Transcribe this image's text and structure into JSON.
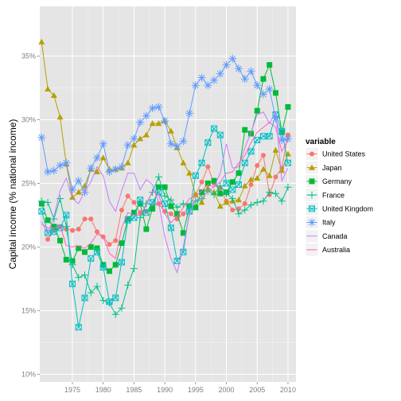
{
  "chart_data": {
    "type": "line",
    "ylabel": "Capital income (% national income)",
    "xlabel": "",
    "xlim": [
      1969.7,
      2011.3
    ],
    "ylim": [
      9.4,
      38.9
    ],
    "x_ticks": [
      1975,
      1980,
      1985,
      1990,
      1995,
      2000,
      2005,
      2010
    ],
    "x_tick_labels": [
      "1975",
      "1980",
      "1985",
      "1990",
      "1995",
      "2000",
      "2005",
      "2010"
    ],
    "y_ticks": [
      10,
      15,
      20,
      25,
      30,
      35
    ],
    "y_tick_labels": [
      "10%",
      "15%",
      "20%",
      "25%",
      "30%",
      "35%"
    ],
    "grid": true,
    "legend": {
      "title": "variable",
      "position": "right"
    },
    "series": [
      {
        "name": "United States",
        "color": "#F8766D",
        "marker": "circle",
        "x": [
          1971,
          1972,
          1973,
          1974,
          1975,
          1976,
          1977,
          1978,
          1979,
          1980,
          1981,
          1982,
          1983,
          1984,
          1985,
          1986,
          1987,
          1988,
          1989,
          1990,
          1991,
          1992,
          1993,
          1994,
          1995,
          1996,
          1997,
          1998,
          1999,
          2000,
          2001,
          2002,
          2003,
          2004,
          2005,
          2006,
          2007,
          2008,
          2009,
          2010
        ],
        "y": [
          20.6,
          21.3,
          21.6,
          21.4,
          21.3,
          21.4,
          22.2,
          22.2,
          21.2,
          20.8,
          20.2,
          20.5,
          22.9,
          24.0,
          23.5,
          22.7,
          22.8,
          23.2,
          23.4,
          22.8,
          22.6,
          22.2,
          22.6,
          23.2,
          24.1,
          25.1,
          26.3,
          25.0,
          24.6,
          23.6,
          22.9,
          23.0,
          23.4,
          24.9,
          26.4,
          27.2,
          24.1,
          25.5,
          26.2,
          28.8
        ]
      },
      {
        "name": "Japan",
        "color": "#B79F00",
        "marker": "triangle",
        "x": [
          1970,
          1971,
          1972,
          1973,
          1974,
          1975,
          1976,
          1977,
          1978,
          1979,
          1980,
          1981,
          1982,
          1983,
          1984,
          1985,
          1986,
          1987,
          1988,
          1989,
          1990,
          1991,
          1992,
          1993,
          1994,
          1995,
          1996,
          1997,
          1998,
          1999,
          2000,
          2001,
          2002,
          2003,
          2004,
          2005,
          2006,
          2007,
          2008,
          2009,
          2010
        ],
        "y": [
          36.1,
          32.4,
          31.9,
          30.2,
          26.5,
          23.9,
          24.3,
          24.8,
          26.1,
          25.9,
          27.0,
          26.1,
          26.1,
          26.2,
          26.6,
          28.0,
          28.5,
          28.8,
          29.7,
          29.7,
          29.9,
          29.1,
          27.8,
          26.6,
          25.8,
          24.1,
          23.5,
          24.6,
          24.3,
          23.2,
          23.5,
          23.6,
          23.7,
          24.8,
          25.3,
          25.4,
          26.1,
          25.6,
          27.6,
          26.0,
          27.3
        ]
      },
      {
        "name": "Germany",
        "color": "#00BA38",
        "marker": "square",
        "x": [
          1970,
          1971,
          1972,
          1973,
          1974,
          1975,
          1976,
          1977,
          1978,
          1979,
          1980,
          1981,
          1982,
          1983,
          1984,
          1985,
          1986,
          1987,
          1988,
          1989,
          1990,
          1991,
          1992,
          1993,
          1994,
          1995,
          1996,
          1997,
          1998,
          1999,
          2000,
          2001,
          2002,
          2003,
          2004,
          2005,
          2006,
          2007,
          2008,
          2009,
          2010
        ],
        "y": [
          23.4,
          22.1,
          21.6,
          20.5,
          19.0,
          18.9,
          19.9,
          19.6,
          20.0,
          19.9,
          18.6,
          18.1,
          18.6,
          20.3,
          22.2,
          22.7,
          23.4,
          21.4,
          23.0,
          24.7,
          24.7,
          23.2,
          22.6,
          21.1,
          23.2,
          23.1,
          24.3,
          25.0,
          25.2,
          24.2,
          24.3,
          25.1,
          25.8,
          29.2,
          28.9,
          30.7,
          33.2,
          34.3,
          32.1,
          29.0,
          31.0
        ]
      },
      {
        "name": "France",
        "color": "#00C08B",
        "marker": "plus",
        "x": [
          1970,
          1971,
          1972,
          1973,
          1974,
          1975,
          1976,
          1977,
          1978,
          1979,
          1980,
          1981,
          1982,
          1983,
          1984,
          1985,
          1986,
          1987,
          1988,
          1989,
          1990,
          1991,
          1992,
          1993,
          1994,
          1995,
          1996,
          1997,
          1998,
          1999,
          2000,
          2001,
          2002,
          2003,
          2004,
          2005,
          2006,
          2007,
          2008,
          2009,
          2010
        ],
        "y": [
          23.6,
          23.5,
          22.2,
          23.8,
          21.6,
          18.6,
          17.6,
          17.8,
          16.4,
          16.9,
          15.8,
          15.6,
          14.7,
          15.2,
          17.0,
          18.3,
          22.3,
          23.4,
          24.3,
          25.5,
          24.0,
          23.7,
          23.1,
          23.4,
          23.2,
          23.6,
          23.8,
          24.4,
          24.1,
          24.8,
          24.2,
          23.8,
          22.6,
          22.9,
          23.3,
          23.5,
          23.6,
          24.3,
          24.2,
          23.6,
          24.7
        ]
      },
      {
        "name": "United Kingdom",
        "color": "#00BFC4",
        "marker": "boxtimes",
        "x": [
          1970,
          1971,
          1972,
          1973,
          1974,
          1975,
          1976,
          1977,
          1978,
          1979,
          1980,
          1981,
          1982,
          1983,
          1984,
          1985,
          1986,
          1987,
          1988,
          1989,
          1990,
          1991,
          1992,
          1993,
          1994,
          1995,
          1996,
          1997,
          1998,
          1999,
          2000,
          2001,
          2002,
          2003,
          2004,
          2005,
          2006,
          2007,
          2008,
          2009,
          2010
        ],
        "y": [
          22.8,
          21.1,
          21.2,
          21.5,
          22.5,
          17.1,
          13.7,
          16.0,
          19.1,
          19.6,
          18.4,
          15.7,
          16.0,
          18.8,
          22.1,
          22.3,
          23.7,
          22.7,
          23.5,
          24.3,
          23.4,
          21.5,
          18.9,
          19.6,
          22.8,
          25.6,
          26.6,
          28.2,
          29.3,
          28.8,
          25.0,
          24.5,
          24.9,
          26.6,
          27.5,
          28.4,
          28.7,
          28.7,
          30.4,
          29.1,
          26.6
        ]
      },
      {
        "name": "Italy",
        "color": "#619CFF",
        "marker": "asterisk",
        "x": [
          1970,
          1971,
          1972,
          1973,
          1974,
          1975,
          1976,
          1977,
          1978,
          1979,
          1980,
          1981,
          1982,
          1983,
          1984,
          1985,
          1986,
          1987,
          1988,
          1989,
          1990,
          1991,
          1992,
          1993,
          1994,
          1995,
          1996,
          1997,
          1998,
          1999,
          2000,
          2001,
          2002,
          2003,
          2004,
          2005,
          2006,
          2007,
          2008,
          2009,
          2010
        ],
        "y": [
          28.6,
          25.9,
          26.0,
          26.4,
          26.6,
          24.5,
          25.2,
          24.3,
          26.2,
          27.0,
          28.1,
          25.9,
          26.1,
          26.3,
          28.0,
          28.5,
          29.8,
          30.3,
          30.9,
          31.0,
          29.9,
          28.1,
          27.9,
          28.3,
          30.5,
          32.7,
          33.3,
          32.7,
          33.1,
          33.6,
          34.3,
          34.8,
          34.0,
          33.2,
          33.8,
          32.7,
          32.0,
          32.4,
          30.1,
          28.4,
          28.5
        ]
      },
      {
        "name": "Canada",
        "color": "#C77CFF",
        "marker": "none",
        "x": [
          1970,
          1971,
          1972,
          1973,
          1974,
          1975,
          1976,
          1977,
          1978,
          1979,
          1980,
          1981,
          1982,
          1983,
          1984,
          1985,
          1986,
          1987,
          1988,
          1989,
          1990,
          1991,
          1992,
          1993,
          1994,
          1995,
          1996,
          1997,
          1998,
          1999,
          2000,
          2001,
          2002,
          2003,
          2004,
          2005,
          2006,
          2007,
          2008,
          2009,
          2010
        ],
        "y": [
          22.0,
          21.0,
          22.4,
          24.4,
          25.4,
          23.8,
          23.4,
          24.4,
          25.1,
          26.3,
          25.6,
          23.6,
          22.8,
          24.4,
          25.8,
          25.8,
          24.5,
          25.3,
          24.9,
          23.5,
          20.8,
          19.1,
          18.0,
          20.0,
          22.6,
          23.7,
          23.8,
          24.4,
          24.7,
          25.8,
          28.1,
          26.2,
          26.3,
          27.8,
          29.0,
          30.4,
          30.6,
          29.7,
          30.6,
          25.2,
          26.2
        ]
      },
      {
        "name": "Australia",
        "color": "#FF61C3",
        "marker": "none",
        "x": [
          1970,
          1971,
          1972,
          1973,
          1974,
          1975,
          1976,
          1977,
          1978,
          1979,
          1980,
          1981,
          1982,
          1983,
          1984,
          1985,
          1986,
          1987,
          1988,
          1989,
          1990,
          1991,
          1992,
          1993,
          1994,
          1995,
          1996,
          1997,
          1998,
          1999,
          2000,
          2001,
          2002,
          2003,
          2004,
          2005,
          2006,
          2007,
          2008,
          2009,
          2010
        ],
        "y": [
          21.8,
          21.5,
          21.5,
          21.7,
          20.1,
          20.0,
          20.1,
          19.9,
          20.3,
          21.0,
          20.8,
          19.5,
          19.1,
          21.5,
          22.7,
          22.5,
          22.5,
          23.3,
          24.4,
          24.1,
          22.6,
          21.9,
          22.4,
          23.1,
          23.8,
          24.0,
          24.4,
          24.9,
          24.7,
          25.1,
          25.8,
          25.9,
          26.6,
          27.2,
          28.2,
          29.0,
          29.4,
          29.8,
          29.4,
          27.5,
          28.4
        ]
      }
    ]
  }
}
